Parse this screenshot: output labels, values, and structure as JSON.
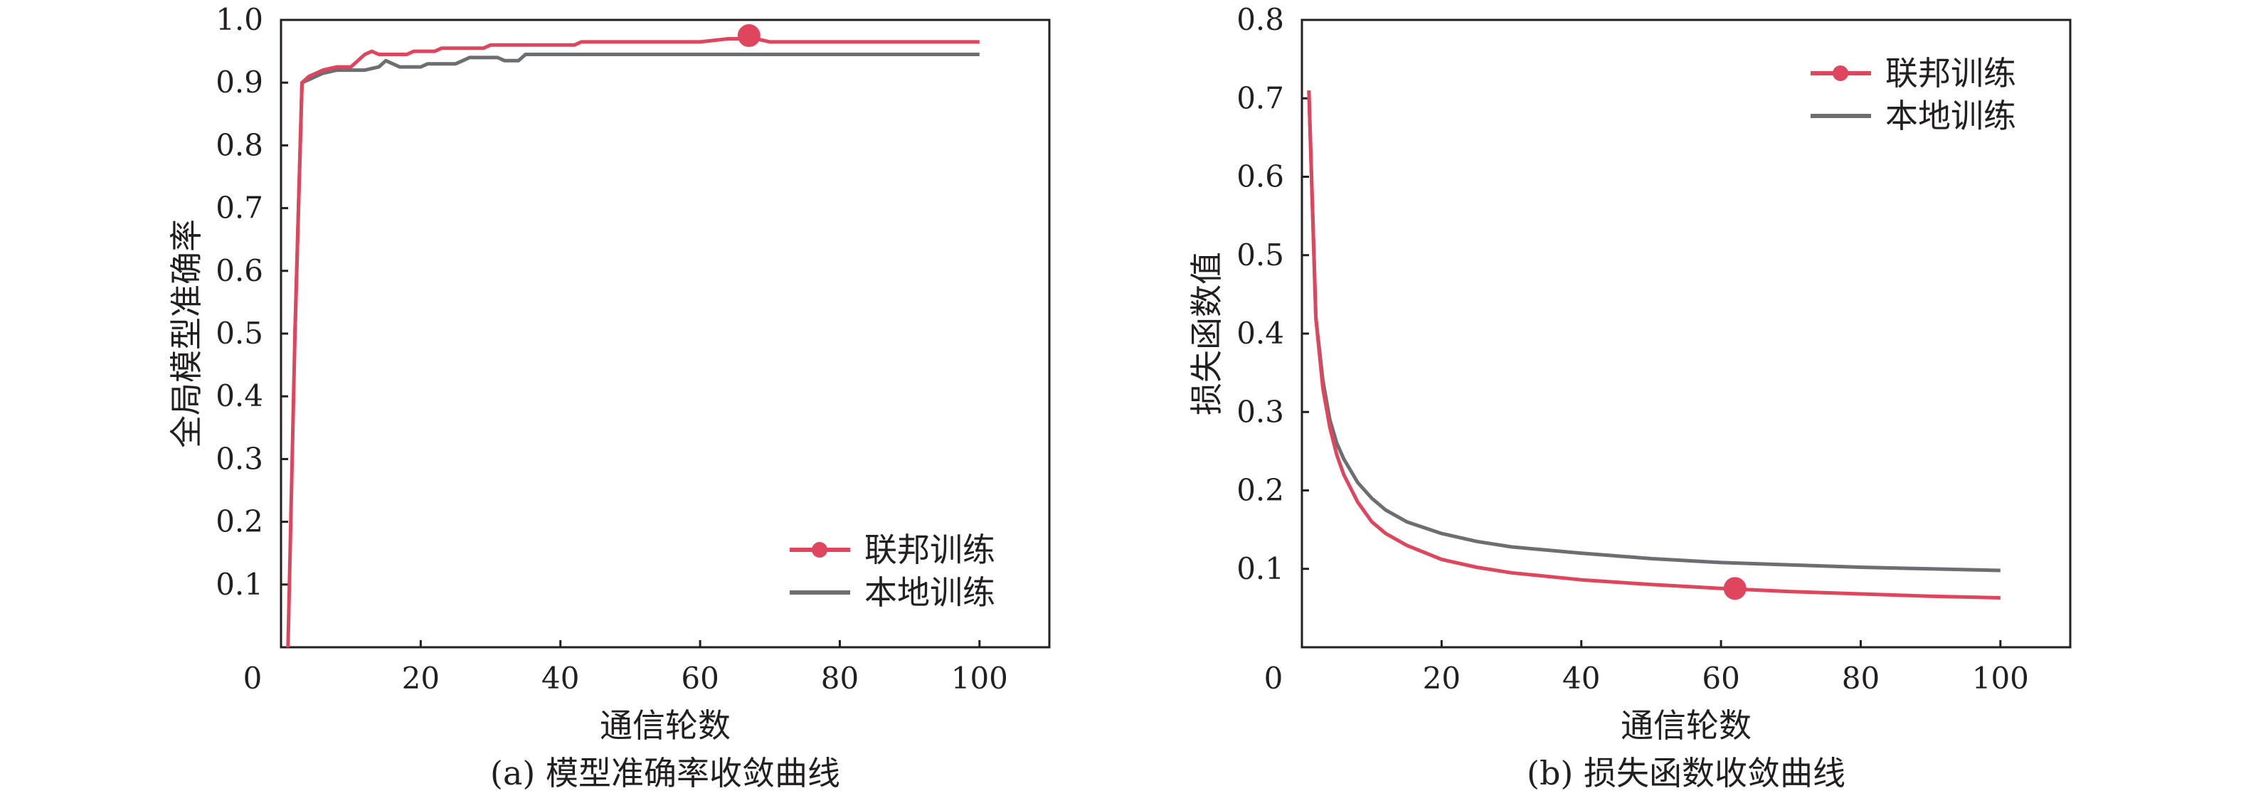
{
  "colors": {
    "federated": "#e0455e",
    "local": "#6d6e71",
    "axis": "#231f20"
  },
  "legend_labels": {
    "federated": "联邦训练",
    "local": "本地训练"
  },
  "chart_data": [
    {
      "id": "a",
      "type": "line",
      "caption": "(a)  模型准确率收敛曲线",
      "xlabel": "通信轮数",
      "ylabel": "全局模型准确率",
      "xlim": [
        0,
        110
      ],
      "ylim": [
        0,
        1.0
      ],
      "x_ticks": [
        0,
        20,
        40,
        60,
        80,
        100
      ],
      "y_ticks": [
        0.1,
        0.2,
        0.3,
        0.4,
        0.5,
        0.6,
        0.7,
        0.8,
        0.9,
        1.0
      ],
      "y_tick_labels": [
        "0.1",
        "0.2",
        "0.3",
        "0.4",
        "0.5",
        "0.6",
        "0.7",
        "0.8",
        "0.9",
        "1.0"
      ],
      "x_tick_labels": [
        "0",
        "20",
        "40",
        "60",
        "80",
        "100"
      ],
      "grid": false,
      "legend_position": "lower-right",
      "series": [
        {
          "name": "联邦训练",
          "color_key": "federated",
          "marker": {
            "x": 67,
            "y": 0.975
          },
          "points": [
            [
              1,
              0.0
            ],
            [
              2,
              0.5
            ],
            [
              3,
              0.9
            ],
            [
              4,
              0.91
            ],
            [
              5,
              0.915
            ],
            [
              6,
              0.92
            ],
            [
              8,
              0.925
            ],
            [
              10,
              0.925
            ],
            [
              11,
              0.935
            ],
            [
              12,
              0.945
            ],
            [
              13,
              0.95
            ],
            [
              14,
              0.945
            ],
            [
              18,
              0.945
            ],
            [
              19,
              0.95
            ],
            [
              22,
              0.95
            ],
            [
              23,
              0.955
            ],
            [
              29,
              0.955
            ],
            [
              30,
              0.96
            ],
            [
              42,
              0.96
            ],
            [
              43,
              0.965
            ],
            [
              60,
              0.965
            ],
            [
              64,
              0.97
            ],
            [
              68,
              0.97
            ],
            [
              70,
              0.965
            ],
            [
              100,
              0.965
            ]
          ]
        },
        {
          "name": "本地训练",
          "color_key": "local",
          "points": [
            [
              2,
              0.5
            ],
            [
              3,
              0.9
            ],
            [
              4,
              0.905
            ],
            [
              5,
              0.91
            ],
            [
              6,
              0.915
            ],
            [
              8,
              0.92
            ],
            [
              12,
              0.92
            ],
            [
              14,
              0.925
            ],
            [
              15,
              0.935
            ],
            [
              16,
              0.93
            ],
            [
              17,
              0.925
            ],
            [
              20,
              0.925
            ],
            [
              21,
              0.93
            ],
            [
              25,
              0.93
            ],
            [
              26,
              0.935
            ],
            [
              27,
              0.94
            ],
            [
              31,
              0.94
            ],
            [
              32,
              0.935
            ],
            [
              34,
              0.935
            ],
            [
              35,
              0.945
            ],
            [
              100,
              0.945
            ]
          ]
        }
      ]
    },
    {
      "id": "b",
      "type": "line",
      "caption": "(b)  损失函数收敛曲线",
      "xlabel": "通信轮数",
      "ylabel": "损失函数值",
      "xlim": [
        0,
        110
      ],
      "ylim": [
        0,
        0.8
      ],
      "x_ticks": [
        0,
        20,
        40,
        60,
        80,
        100
      ],
      "y_ticks": [
        0.1,
        0.2,
        0.3,
        0.4,
        0.5,
        0.6,
        0.7,
        0.8
      ],
      "y_tick_labels": [
        "0.1",
        "0.2",
        "0.3",
        "0.4",
        "0.5",
        "0.6",
        "0.7",
        "0.8"
      ],
      "x_tick_labels": [
        "0",
        "20",
        "40",
        "60",
        "80",
        "100"
      ],
      "grid": false,
      "legend_position": "upper-right",
      "series": [
        {
          "name": "联邦训练",
          "color_key": "federated",
          "marker": {
            "x": 62,
            "y": 0.075
          },
          "points": [
            [
              1,
              0.71
            ],
            [
              2,
              0.42
            ],
            [
              3,
              0.33
            ],
            [
              4,
              0.28
            ],
            [
              5,
              0.245
            ],
            [
              6,
              0.22
            ],
            [
              8,
              0.185
            ],
            [
              10,
              0.16
            ],
            [
              12,
              0.145
            ],
            [
              15,
              0.13
            ],
            [
              20,
              0.112
            ],
            [
              25,
              0.102
            ],
            [
              30,
              0.095
            ],
            [
              40,
              0.086
            ],
            [
              50,
              0.08
            ],
            [
              60,
              0.075
            ],
            [
              70,
              0.071
            ],
            [
              80,
              0.068
            ],
            [
              90,
              0.065
            ],
            [
              100,
              0.063
            ]
          ]
        },
        {
          "name": "本地训练",
          "color_key": "local",
          "points": [
            [
              1,
              0.71
            ],
            [
              2,
              0.42
            ],
            [
              3,
              0.34
            ],
            [
              4,
              0.29
            ],
            [
              5,
              0.26
            ],
            [
              6,
              0.24
            ],
            [
              8,
              0.21
            ],
            [
              10,
              0.19
            ],
            [
              12,
              0.175
            ],
            [
              15,
              0.16
            ],
            [
              20,
              0.145
            ],
            [
              25,
              0.135
            ],
            [
              30,
              0.128
            ],
            [
              40,
              0.12
            ],
            [
              50,
              0.113
            ],
            [
              60,
              0.108
            ],
            [
              70,
              0.105
            ],
            [
              80,
              0.102
            ],
            [
              90,
              0.1
            ],
            [
              100,
              0.098
            ]
          ]
        }
      ]
    }
  ]
}
